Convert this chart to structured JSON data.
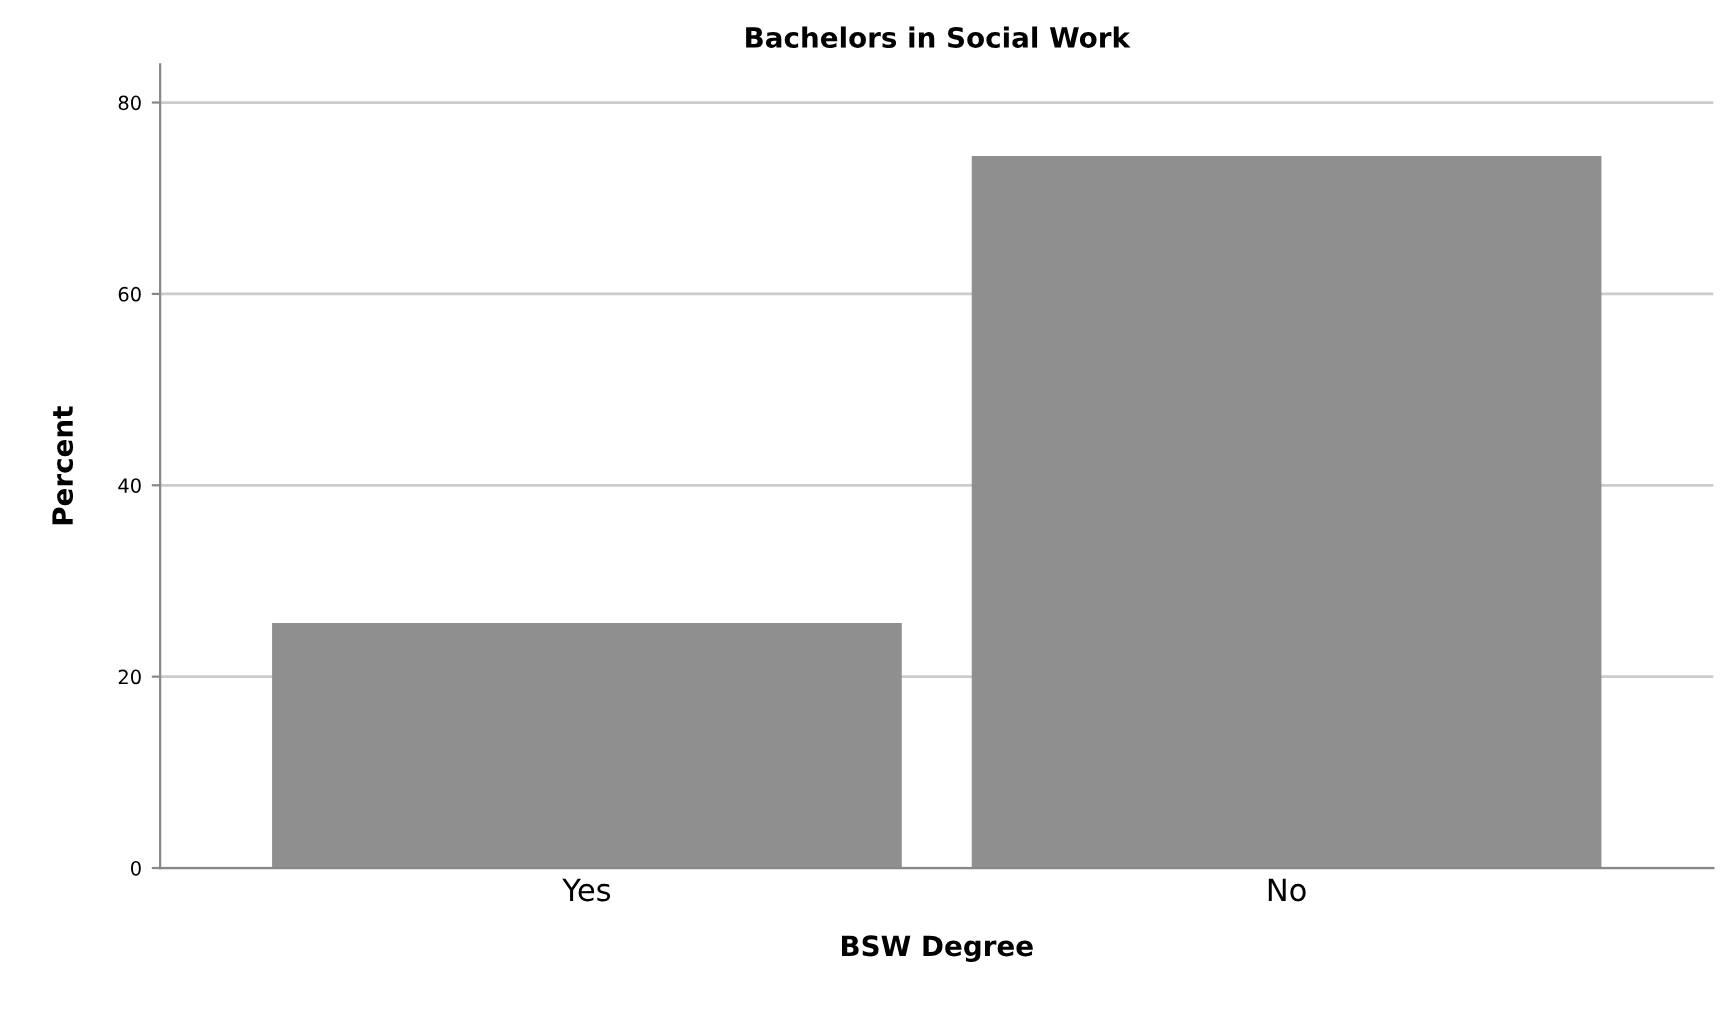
{
  "chart_data": {
    "type": "bar",
    "title": "Bachelors in Social Work",
    "xlabel": "BSW Degree",
    "ylabel": "Percent",
    "categories": [
      "Yes",
      "No"
    ],
    "values": [
      25.6,
      74.4
    ],
    "color": "#8f8f8f",
    "ylim": [
      0,
      84
    ],
    "yticks": [
      0,
      20,
      40,
      60,
      80
    ],
    "grid": "y"
  }
}
